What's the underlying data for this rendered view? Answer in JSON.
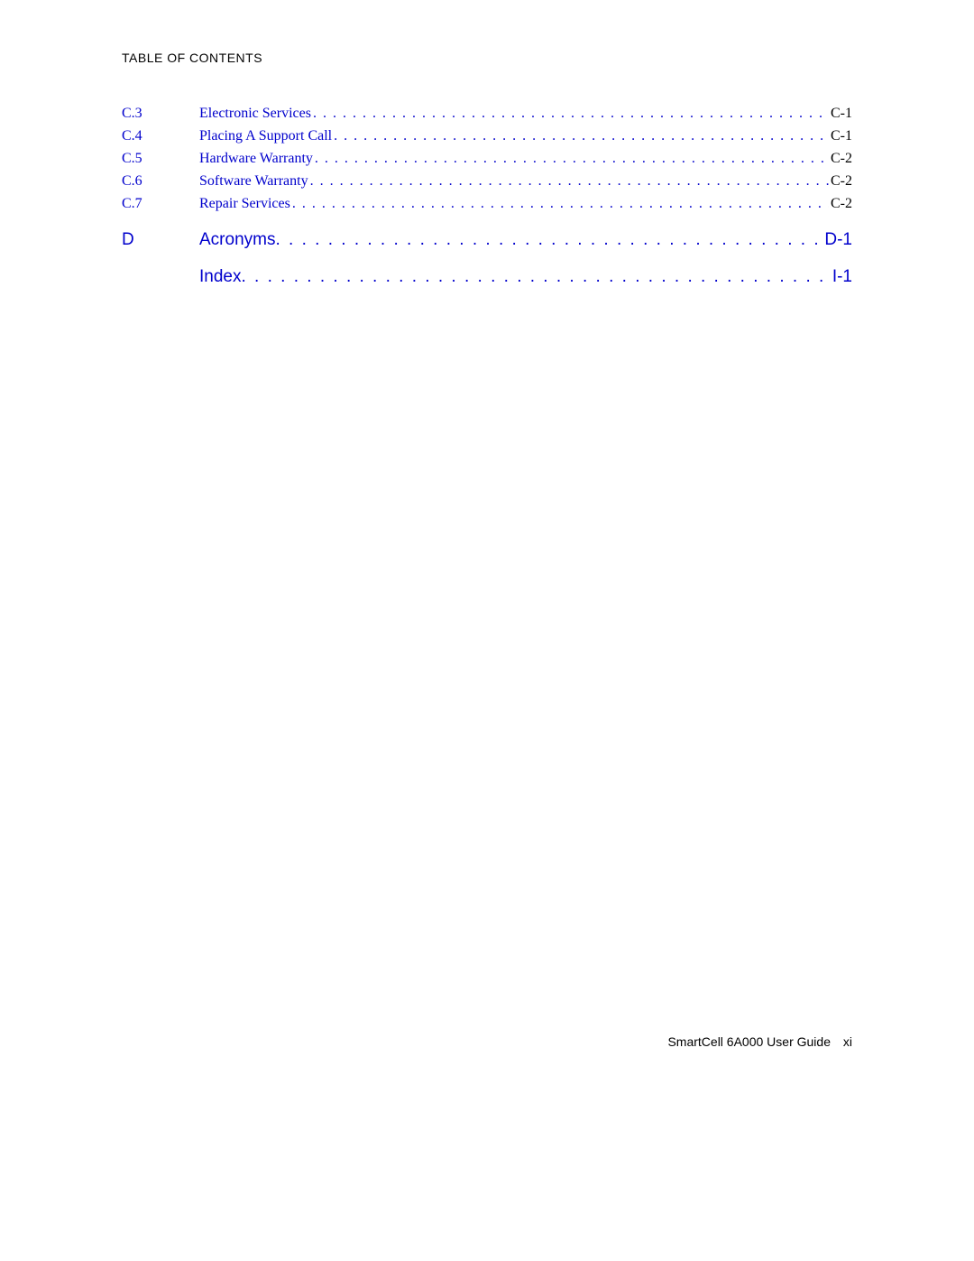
{
  "header": {
    "title": "TABLE OF CONTENTS"
  },
  "link_color": "#0000cc",
  "text_color": "#000000",
  "background_color": "#ffffff",
  "font_serif": "Times New Roman",
  "font_sans": "Arial",
  "sub_fontsize": 16,
  "chapter_fontsize": 19,
  "entries": [
    {
      "kind": "sub",
      "num": "C.3",
      "title": "Electronic Services",
      "page": "C-1"
    },
    {
      "kind": "sub",
      "num": "C.4",
      "title": "Placing A Support Call",
      "page": "C-1"
    },
    {
      "kind": "sub",
      "num": "C.5",
      "title": "Hardware Warranty",
      "page": "C-2"
    },
    {
      "kind": "sub",
      "num": "C.6",
      "title": "Software Warranty",
      "page": "C-2"
    },
    {
      "kind": "sub",
      "num": "C.7",
      "title": "Repair Services",
      "page": "C-2"
    },
    {
      "kind": "chapter",
      "num": "D",
      "title": "Acronyms",
      "page": "D-1"
    },
    {
      "kind": "chapter",
      "num": "",
      "title": "Index",
      "page": "I-1"
    }
  ],
  "footer": {
    "doc": "SmartCell 6A000 User Guide",
    "page": "xi"
  }
}
